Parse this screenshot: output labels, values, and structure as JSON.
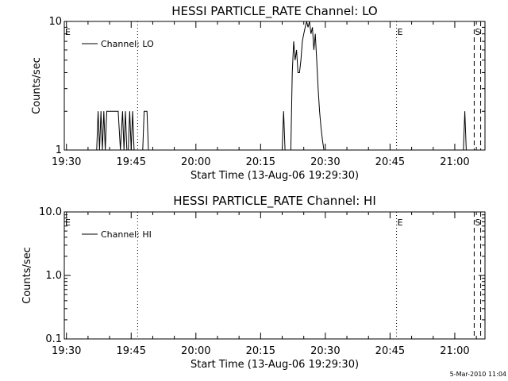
{
  "stamp": "5-Mar-2010 11:04",
  "chart_data": [
    {
      "type": "line",
      "title": "HESSI PARTICLE_RATE Channel: LO",
      "xlabel": "Start Time (13-Aug-06 19:29:30)",
      "ylabel": "Counts/sec",
      "yscale": "log",
      "xlim": [
        "19:29:30",
        "21:07:00"
      ],
      "ylim": [
        1,
        10
      ],
      "xticks": [
        "19:30",
        "19:45",
        "20:00",
        "20:15",
        "20:30",
        "20:45",
        "21:00"
      ],
      "yticks": [
        "1",
        "10"
      ],
      "legend": {
        "position": "top-left",
        "entries": [
          "Channel: LO"
        ]
      },
      "series": [
        {
          "name": "Channel: LO",
          "x": [
            "19:37:00",
            "19:37:20",
            "19:37:40",
            "19:38:00",
            "19:38:20",
            "19:38:40",
            "19:39:00",
            "19:39:20",
            "19:39:40",
            "19:40:00",
            "19:40:30",
            "19:41:00",
            "19:41:30",
            "19:42:00",
            "19:42:30",
            "19:43:00",
            "19:43:20",
            "19:43:40",
            "19:44:00",
            "19:44:20",
            "19:44:40",
            "19:45:00",
            "19:45:20",
            "19:45:40",
            "19:46:00",
            "19:47:40",
            "19:48:00",
            "19:48:20",
            "19:48:40",
            "19:49:00",
            "19:49:20",
            "19:49:40",
            "19:50:00",
            "20:20:00",
            "20:20:20",
            "20:20:40",
            "20:22:00",
            "20:22:20",
            "20:22:40",
            "20:23:00",
            "20:23:20",
            "20:23:40",
            "20:24:00",
            "20:24:20",
            "20:24:40",
            "20:25:00",
            "20:25:20",
            "20:25:40",
            "20:26:00",
            "20:26:20",
            "20:26:40",
            "20:27:00",
            "20:27:20",
            "20:27:40",
            "20:28:00",
            "20:28:20",
            "20:28:40",
            "20:29:00",
            "20:29:20",
            "20:29:40",
            "20:30:00",
            "21:02:00",
            "21:02:20",
            "21:02:40"
          ],
          "values": [
            1,
            2,
            1,
            2,
            1,
            2,
            1,
            2,
            2,
            2,
            2,
            2,
            2,
            2,
            1,
            2,
            1,
            2,
            1,
            1,
            2,
            1,
            2,
            1,
            1,
            1,
            2,
            2,
            2,
            1,
            1,
            1,
            1,
            1,
            2,
            1,
            1,
            4,
            7,
            5,
            6,
            4,
            4,
            5,
            7,
            8,
            9,
            10,
            9,
            10,
            8,
            9,
            6,
            8,
            5,
            3,
            2,
            1.5,
            1.2,
            1,
            1,
            1,
            2,
            1
          ]
        }
      ],
      "markers": [
        {
          "label": "E",
          "time": "19:29:30",
          "style": "dotted"
        },
        {
          "label": "",
          "time": "19:46:30",
          "style": "dotted"
        },
        {
          "label": "E",
          "time": "20:46:30",
          "style": "dotted"
        },
        {
          "label": "S",
          "time": "21:04:30",
          "style": "dashed"
        },
        {
          "label": "",
          "time": "21:06:00",
          "style": "dashed"
        }
      ]
    },
    {
      "type": "line",
      "title": "HESSI PARTICLE_RATE Channel: HI",
      "xlabel": "Start Time (13-Aug-06 19:29:30)",
      "ylabel": "Counts/sec",
      "yscale": "log",
      "xlim": [
        "19:29:30",
        "21:07:00"
      ],
      "ylim": [
        0.1,
        10
      ],
      "xticks": [
        "19:30",
        "19:45",
        "20:00",
        "20:15",
        "20:30",
        "20:45",
        "21:00"
      ],
      "yticks": [
        "0.1",
        "1.0",
        "10.0"
      ],
      "legend": {
        "position": "top-left",
        "entries": [
          "Channel: HI"
        ]
      },
      "series": [
        {
          "name": "Channel: HI",
          "x": [],
          "values": []
        }
      ],
      "markers": [
        {
          "label": "E",
          "time": "19:29:30",
          "style": "dotted"
        },
        {
          "label": "",
          "time": "19:46:30",
          "style": "dotted"
        },
        {
          "label": "E",
          "time": "20:46:30",
          "style": "dotted"
        },
        {
          "label": "S",
          "time": "21:04:30",
          "style": "dashed"
        },
        {
          "label": "",
          "time": "21:06:00",
          "style": "dashed"
        }
      ]
    }
  ]
}
